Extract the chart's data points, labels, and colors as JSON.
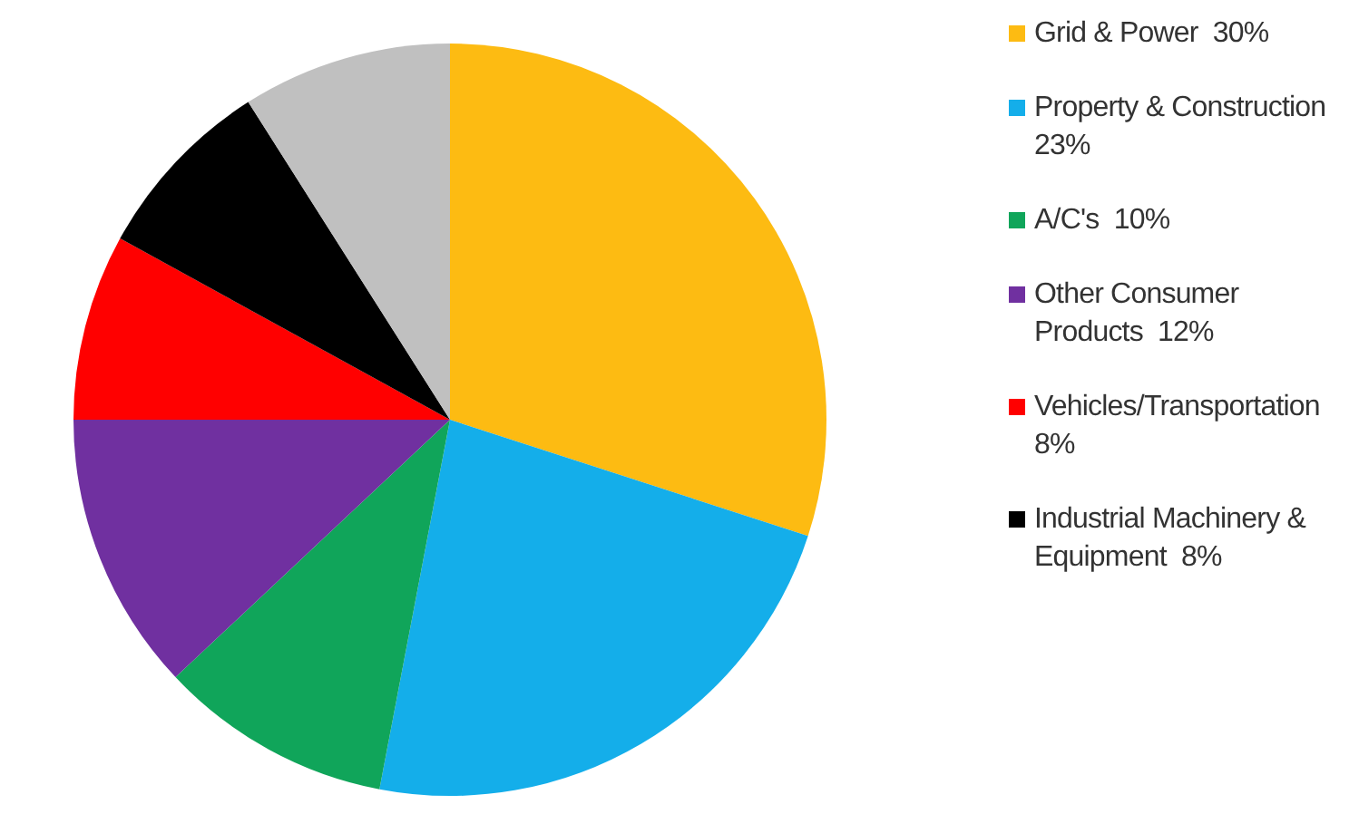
{
  "chart_data": {
    "type": "pie",
    "categories": [
      "Grid & Power",
      "Property & Construction",
      "A/C's",
      "Other Consumer Products",
      "Vehicles/Transportation",
      "Industrial Machinery & Equipment",
      null
    ],
    "values": [
      30,
      23,
      10,
      12,
      8,
      8,
      9
    ],
    "value_labels": [
      "30%",
      "23%",
      "10%",
      "12%",
      "8%",
      "8%",
      null
    ],
    "colors": [
      "#fdbb12",
      "#14aeea",
      "#10a55a",
      "#7030a0",
      "#ff0000",
      "#000000",
      "#c0c0c0"
    ],
    "legend": "right"
  }
}
